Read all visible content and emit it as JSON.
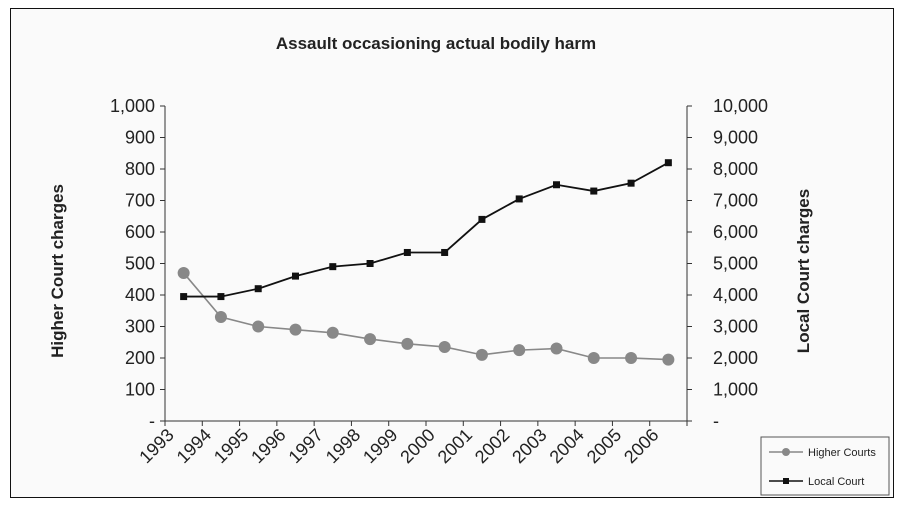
{
  "chart_data": {
    "type": "line",
    "title": "Assault occasioning actual bodily harm",
    "ylabel_left": "Higher Court charges",
    "ylabel_right": "Local Court charges",
    "categories": [
      "1993",
      "1994",
      "1995",
      "1996",
      "1997",
      "1998",
      "1999",
      "2000",
      "2001",
      "2002",
      "2003",
      "2004",
      "2005",
      "2006"
    ],
    "ylim_left": [
      0,
      1000
    ],
    "ylim_right": [
      0,
      10000
    ],
    "yticks_left": [
      "-",
      "100",
      "200",
      "300",
      "400",
      "500",
      "600",
      "700",
      "800",
      "900",
      "1,000"
    ],
    "yticks_right": [
      "-",
      "1,000",
      "2,000",
      "3,000",
      "4,000",
      "5,000",
      "6,000",
      "7,000",
      "8,000",
      "9,000",
      "10,000"
    ],
    "series": [
      {
        "name": "Higher Courts",
        "axis": "left",
        "marker": "circle",
        "color": "#888888",
        "values": [
          470,
          330,
          300,
          290,
          280,
          260,
          245,
          235,
          210,
          225,
          230,
          200,
          200,
          195
        ]
      },
      {
        "name": "Local Court",
        "axis": "right",
        "marker": "square",
        "color": "#111111",
        "values": [
          3950,
          3950,
          4200,
          4600,
          4900,
          5000,
          5350,
          5350,
          6400,
          7050,
          7500,
          7300,
          7550,
          8200
        ]
      }
    ],
    "grid": false,
    "legend_position": "bottom-right"
  }
}
